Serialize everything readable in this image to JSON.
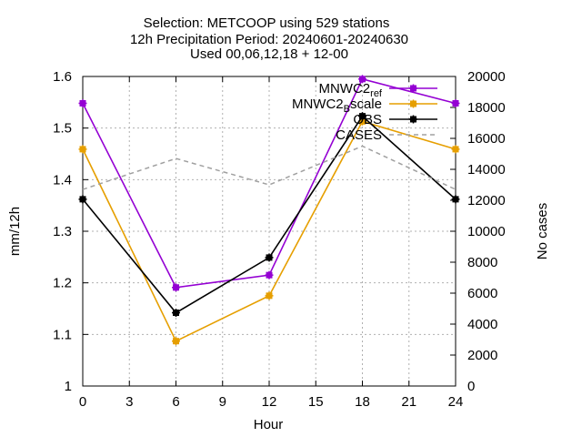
{
  "title_lines": [
    "Selection: METCOOP using   529 stations",
    "12h Precipitation   Period: 20240601-20240630",
    "Used 00,06,12,18 + 12-00"
  ],
  "chart_data": {
    "type": "line",
    "xlabel": "Hour",
    "ylabel": "mm/12h",
    "y2label": "No cases",
    "xlim": [
      0,
      24
    ],
    "ylim": [
      1.0,
      1.6
    ],
    "y2lim": [
      0,
      20000
    ],
    "xticks": [
      0,
      3,
      6,
      9,
      12,
      15,
      18,
      21,
      24
    ],
    "yticks": [
      "1",
      "1.1",
      "1.2",
      "1.3",
      "1.4",
      "1.5",
      "1.6"
    ],
    "y2ticks": [
      "0",
      "2000",
      "4000",
      "6000",
      "8000",
      "10000",
      "12000",
      "14000",
      "16000",
      "18000",
      "20000"
    ],
    "grid": true,
    "legend_position": "top-right",
    "x": [
      0,
      6,
      12,
      18,
      24
    ],
    "series": [
      {
        "name": "MNWC2_ref",
        "legend_main": "MNWC2",
        "legend_sub": "ref",
        "legend_rest": "",
        "color": "#9400d3",
        "axis": "y",
        "dashed": false,
        "values": [
          1.548,
          1.191,
          1.215,
          1.595,
          1.548
        ]
      },
      {
        "name": "MNWC2_Bscale",
        "legend_main": "MNWC2",
        "legend_sub": "B",
        "legend_rest": "scale",
        "color": "#e69f00",
        "axis": "y",
        "dashed": false,
        "values": [
          1.459,
          1.087,
          1.175,
          1.513,
          1.459
        ]
      },
      {
        "name": "OBS",
        "legend_main": "OBS",
        "legend_sub": "",
        "legend_rest": "",
        "color": "#000000",
        "axis": "y",
        "dashed": false,
        "values": [
          1.362,
          1.142,
          1.249,
          1.523,
          1.362
        ]
      },
      {
        "name": "CASES",
        "legend_main": "CASES",
        "legend_sub": "",
        "legend_rest": "",
        "color": "#a0a0a0",
        "axis": "y2",
        "dashed": true,
        "values": [
          12700,
          14700,
          13000,
          15500,
          12700
        ]
      }
    ]
  }
}
